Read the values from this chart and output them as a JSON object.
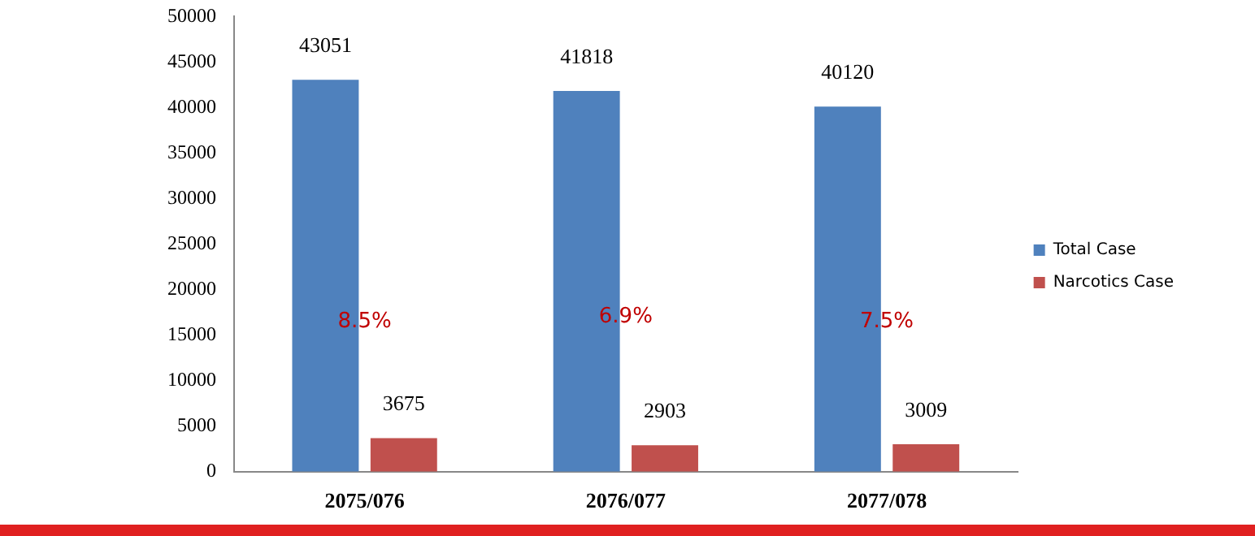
{
  "chart_data": {
    "type": "bar",
    "categories": [
      "2075/076",
      "2076/077",
      "2077/078"
    ],
    "series": [
      {
        "name": "Total Case",
        "color": "#4f81bd",
        "values": [
          43051,
          41818,
          40120
        ]
      },
      {
        "name": "Narcotics Case",
        "color": "#c0504d",
        "values": [
          3675,
          2903,
          3009
        ]
      }
    ],
    "ylim": [
      0,
      50000
    ],
    "yticks": [
      0,
      5000,
      10000,
      15000,
      20000,
      25000,
      30000,
      35000,
      40000,
      45000,
      50000
    ],
    "grid": false,
    "legend": "right",
    "data_labels": true,
    "annotations": [
      {
        "text": "8.5%",
        "x": "2075/076",
        "y": 16500
      },
      {
        "text": "6.9%",
        "x": "2076/077",
        "y": 17000
      },
      {
        "text": "7.5%",
        "x": "2077/078",
        "y": 16500
      }
    ]
  }
}
